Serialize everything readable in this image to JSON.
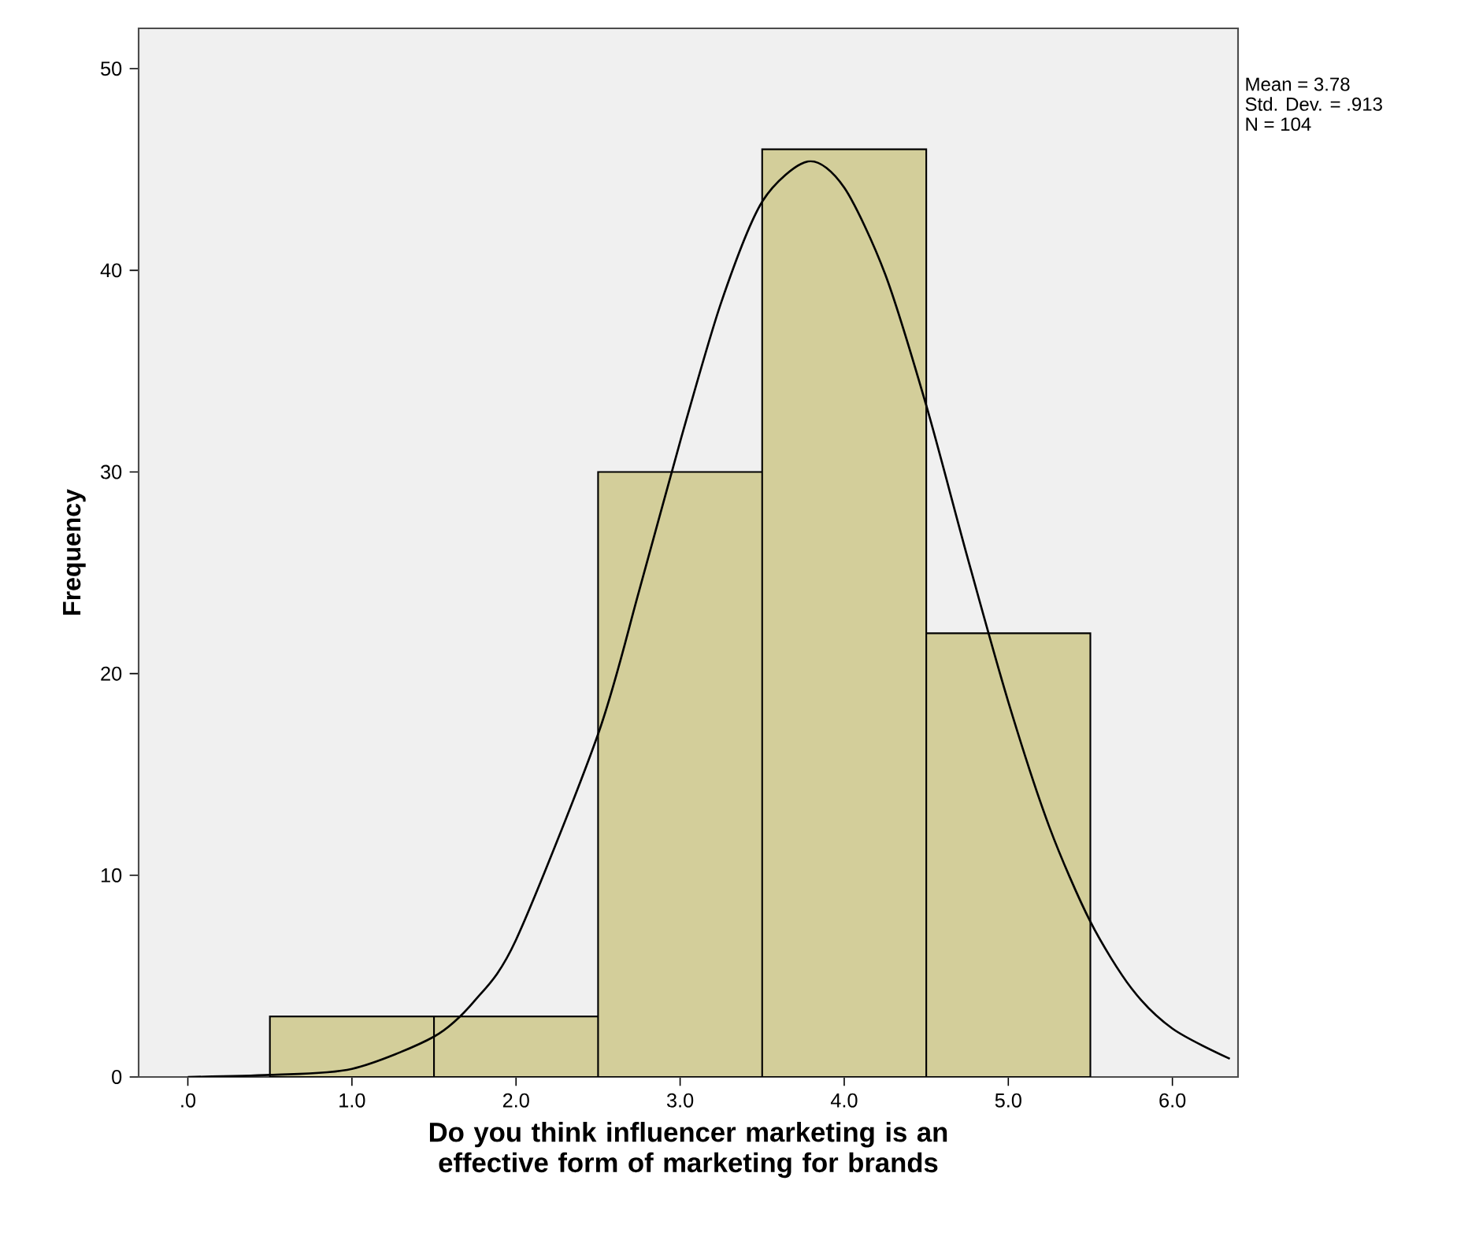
{
  "chart_data": {
    "type": "histogram",
    "xlabel": "Do you think influencer marketing is an effective form of marketing for brands",
    "ylabel": "Frequency",
    "annotations": [
      "Mean = 3.78",
      "Std. Dev. = .913",
      "N = 104"
    ],
    "series": [
      {
        "color": "#d3ce9a",
        "bins": [
          0.5,
          1.5,
          2.5,
          3.5,
          4.5,
          5.5
        ],
        "values": [
          3,
          3,
          30,
          46,
          22
        ]
      },
      {
        "type": "line",
        "color": "#000000",
        "x": [
          0,
          0.5,
          1.0,
          1.5,
          1.75,
          2.0,
          2.5,
          2.75,
          3.0,
          3.25,
          3.5,
          3.78,
          4.0,
          4.25,
          4.5,
          4.75,
          5.0,
          5.25,
          5.5,
          5.75,
          6.0,
          6.35
        ],
        "values": [
          0.0,
          0.1,
          0.4,
          2.0,
          3.8,
          6.8,
          17.0,
          24.1,
          31.5,
          38.4,
          43.4,
          45.4,
          44.1,
          39.8,
          33.3,
          25.8,
          18.6,
          12.4,
          7.7,
          4.4,
          2.4,
          0.9
        ]
      }
    ],
    "xlim": [
      -0.3,
      6.4
    ],
    "ylim": [
      0,
      52
    ],
    "xticks": [
      {
        "value": 0,
        "label": ".0"
      },
      {
        "value": 1,
        "label": "1.0"
      },
      {
        "value": 2,
        "label": "2.0"
      },
      {
        "value": 3,
        "label": "3.0"
      },
      {
        "value": 4,
        "label": "4.0"
      },
      {
        "value": 5,
        "label": "5.0"
      },
      {
        "value": 6,
        "label": "6.0"
      }
    ],
    "yticks": [
      0,
      10,
      20,
      30,
      40,
      50
    ],
    "grid": false
  }
}
